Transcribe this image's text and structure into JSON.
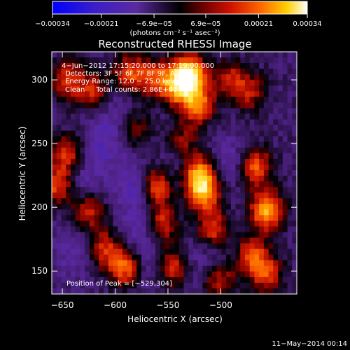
{
  "chart_data": {
    "type": "heatmap",
    "title": "Reconstructed RHESSI Image",
    "xlabel": "Heliocentric X (arcsec)",
    "ylabel": "Heliocentric Y (arcsec)",
    "xlim": [
      -660,
      -428
    ],
    "ylim": [
      132,
      322
    ],
    "xticks": [
      -650,
      -600,
      -550,
      -500
    ],
    "yticks": [
      150,
      200,
      250,
      300
    ],
    "xtick_labels": [
      "−650",
      "−600",
      "−550",
      "−500"
    ],
    "ytick_labels": [
      "150",
      "200",
      "250",
      "300"
    ],
    "colorbar": {
      "range": [
        -0.00034,
        0.00034
      ],
      "ticks": [
        -0.00034,
        -0.00021,
        -6.9e-05,
        6.9e-05,
        0.00021,
        0.00034
      ],
      "tick_labels": [
        "−0.00034",
        "−0.00021",
        "−6.9e−05",
        "6.9e−05",
        "0.00021",
        "0.00034"
      ],
      "unit_text": "(photons cm⁻² s⁻¹ asec⁻²)",
      "colormap": "rainbow-to-hot (blue, purple, black, red, orange, yellow, white)"
    },
    "info_lines": [
      "4−Jun−2012 17:15:20.000 to 17:19:00.000",
      "Detectors: 3F 5F 6F 7F 8F 9F, All Ct",
      "Energy Range: 12.0 − 25.0 keV",
      "Clean     Total counts: 2.86E+03"
    ],
    "peak_label": "Position of Peak = [−529,304]",
    "peak_position": [
      -529,
      304
    ],
    "sources": [
      {
        "x": -528,
        "y": 305,
        "intensity": 1.0
      },
      {
        "x": -538,
        "y": 295,
        "intensity": 0.85
      },
      {
        "x": -520,
        "y": 280,
        "intensity": 0.75
      },
      {
        "x": -585,
        "y": 305,
        "intensity": 0.65
      },
      {
        "x": -560,
        "y": 300,
        "intensity": 0.6
      },
      {
        "x": -645,
        "y": 300,
        "intensity": 0.6
      },
      {
        "x": -620,
        "y": 290,
        "intensity": 0.55
      },
      {
        "x": -490,
        "y": 300,
        "intensity": 0.5
      },
      {
        "x": -470,
        "y": 290,
        "intensity": 0.45
      },
      {
        "x": -515,
        "y": 210,
        "intensity": 0.85
      },
      {
        "x": -520,
        "y": 225,
        "intensity": 0.8
      },
      {
        "x": -505,
        "y": 180,
        "intensity": 0.7
      },
      {
        "x": -455,
        "y": 195,
        "intensity": 0.95
      },
      {
        "x": -465,
        "y": 230,
        "intensity": 0.7
      },
      {
        "x": -470,
        "y": 160,
        "intensity": 0.65
      },
      {
        "x": -455,
        "y": 145,
        "intensity": 0.6
      },
      {
        "x": -560,
        "y": 215,
        "intensity": 0.75
      },
      {
        "x": -555,
        "y": 185,
        "intensity": 0.6
      },
      {
        "x": -545,
        "y": 150,
        "intensity": 0.65
      },
      {
        "x": -590,
        "y": 150,
        "intensity": 0.75
      },
      {
        "x": -645,
        "y": 240,
        "intensity": 0.6
      },
      {
        "x": -655,
        "y": 215,
        "intensity": 0.65
      },
      {
        "x": -625,
        "y": 195,
        "intensity": 0.55
      },
      {
        "x": -610,
        "y": 165,
        "intensity": 0.55
      },
      {
        "x": -500,
        "y": 140,
        "intensity": 0.5
      },
      {
        "x": -580,
        "y": 260,
        "intensity": 0.35
      },
      {
        "x": -535,
        "y": 250,
        "intensity": 0.4
      }
    ],
    "negatives": [
      {
        "x": -610,
        "y": 250,
        "intensity": 0.5
      },
      {
        "x": -580,
        "y": 215,
        "intensity": 0.6
      },
      {
        "x": -630,
        "y": 220,
        "intensity": 0.45
      },
      {
        "x": -540,
        "y": 230,
        "intensity": 0.35
      },
      {
        "x": -490,
        "y": 235,
        "intensity": 0.4
      },
      {
        "x": -495,
        "y": 170,
        "intensity": 0.3
      },
      {
        "x": -575,
        "y": 180,
        "intensity": 0.45
      },
      {
        "x": -640,
        "y": 160,
        "intensity": 0.35
      },
      {
        "x": -565,
        "y": 150,
        "intensity": 0.35
      },
      {
        "x": -520,
        "y": 155,
        "intensity": 0.3
      },
      {
        "x": -600,
        "y": 280,
        "intensity": 0.3
      }
    ]
  },
  "footer": {
    "timestamp": "11−May−2014 00:14"
  }
}
